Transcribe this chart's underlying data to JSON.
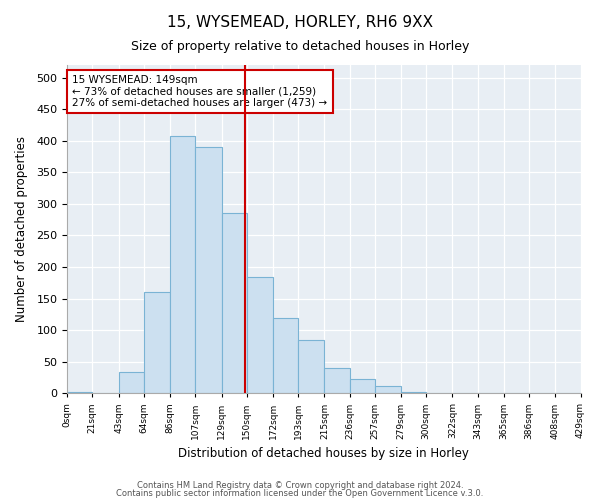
{
  "title": "15, WYSEMEAD, HORLEY, RH6 9XX",
  "subtitle": "Size of property relative to detached houses in Horley",
  "xlabel": "Distribution of detached houses by size in Horley",
  "ylabel": "Number of detached properties",
  "bin_edges": [
    0,
    21,
    43,
    64,
    86,
    107,
    129,
    150,
    172,
    193,
    215,
    236,
    257,
    279,
    300,
    322,
    343,
    365,
    386,
    408,
    429
  ],
  "bar_heights": [
    2,
    0,
    33,
    160,
    407,
    390,
    285,
    184,
    120,
    85,
    40,
    22,
    12,
    2,
    0,
    0,
    0,
    0,
    0,
    0
  ],
  "bar_facecolor": "#cce0f0",
  "bar_edgecolor": "#7ab3d4",
  "vline_x": 149,
  "vline_color": "#cc0000",
  "ylim": [
    0,
    520
  ],
  "annotation_text": "15 WYSEMEAD: 149sqm\n← 73% of detached houses are smaller (1,259)\n27% of semi-detached houses are larger (473) →",
  "annotation_boxcolor": "white",
  "annotation_boxedge": "#cc0000",
  "footer_line1": "Contains HM Land Registry data © Crown copyright and database right 2024.",
  "footer_line2": "Contains public sector information licensed under the Open Government Licence v.3.0.",
  "plot_bg_color": "#e8eef4",
  "fig_bg_color": "#ffffff",
  "tick_labels": [
    "0sqm",
    "21sqm",
    "43sqm",
    "64sqm",
    "86sqm",
    "107sqm",
    "129sqm",
    "150sqm",
    "172sqm",
    "193sqm",
    "215sqm",
    "236sqm",
    "257sqm",
    "279sqm",
    "300sqm",
    "322sqm",
    "343sqm",
    "365sqm",
    "386sqm",
    "408sqm",
    "429sqm"
  ]
}
